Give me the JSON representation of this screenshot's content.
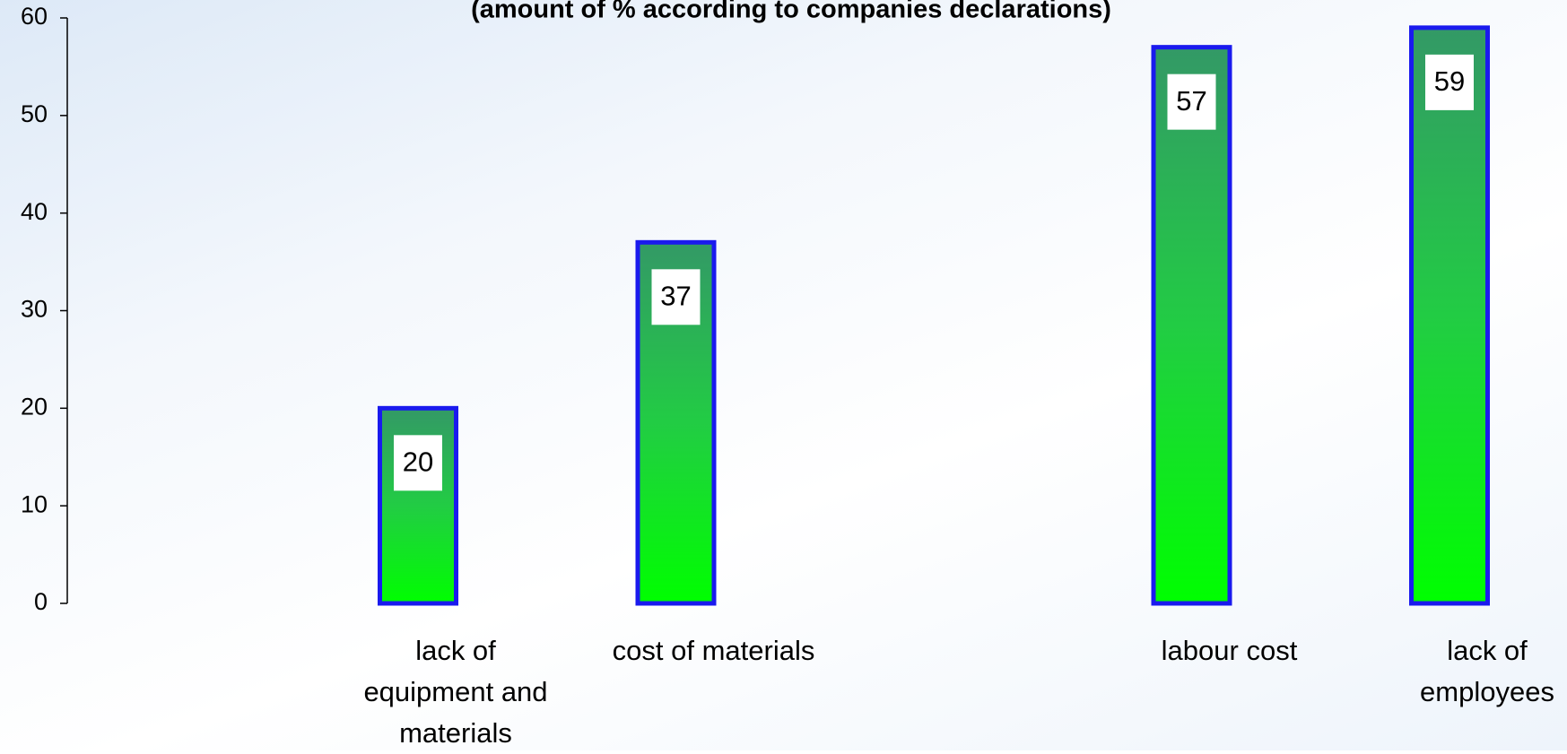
{
  "chart_data": {
    "type": "bar",
    "title": "(amount of % according to companies declarations)",
    "categories": [
      "lack of equipment and materials",
      "cost of materials",
      null,
      "labour cost",
      "lack of employees"
    ],
    "values": [
      20,
      37,
      null,
      57,
      59
    ],
    "color": "#33cc44",
    "edge_color": "#1a1aee",
    "ylim": [
      0,
      60
    ],
    "yticks": [
      0,
      10,
      20,
      30,
      40,
      50,
      60
    ]
  }
}
